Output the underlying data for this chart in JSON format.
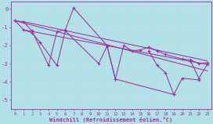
{
  "xlabel": "Windchill (Refroidissement éolien,°C)",
  "xlim": [
    -0.5,
    23.5
  ],
  "ylim": [
    -5.5,
    0.4
  ],
  "yticks": [
    0,
    -1,
    -2,
    -3,
    -4,
    -5
  ],
  "xticks": [
    0,
    1,
    2,
    3,
    4,
    5,
    6,
    7,
    8,
    9,
    10,
    11,
    12,
    13,
    14,
    15,
    16,
    17,
    18,
    19,
    20,
    21,
    22,
    23
  ],
  "background_color": "#b2e0e8",
  "line_color": "#993399",
  "grid_color": "#c8dde0",
  "series": [
    [
      -0.65,
      -0.7,
      -1.2,
      null,
      -3.1,
      -1.25,
      -1.15,
      0.05,
      null,
      null,
      null,
      -2.0,
      -3.85,
      null,
      null,
      null,
      null,
      null,
      null,
      -4.7,
      null,
      null,
      null,
      null
    ],
    [
      -0.65,
      -1.15,
      -1.3,
      -1.85,
      null,
      -3.1,
      -1.2,
      null,
      null,
      null,
      -3.0,
      -2.05,
      -3.85,
      -2.0,
      -2.3,
      -2.25,
      -2.1,
      -2.3,
      -2.5,
      null,
      -2.75,
      -2.8,
      -3.0,
      -2.95
    ],
    [
      null,
      null,
      null,
      null,
      null,
      null,
      null,
      null,
      null,
      null,
      null,
      null,
      null,
      null,
      null,
      null,
      -2.3,
      -3.1,
      -3.5,
      -4.7,
      -3.8,
      null,
      -3.9,
      null
    ],
    [
      null,
      null,
      null,
      null,
      null,
      null,
      null,
      null,
      null,
      null,
      null,
      null,
      null,
      null,
      null,
      null,
      null,
      null,
      null,
      null,
      null,
      -2.85,
      -3.8,
      -3.05
    ]
  ],
  "trend_lines": [
    [
      [
        1,
        23
      ],
      [
        -0.7,
        -2.85
      ]
    ],
    [
      [
        1,
        23
      ],
      [
        -1.15,
        -3.05
      ]
    ],
    [
      [
        0,
        23
      ],
      [
        -0.65,
        -3.4
      ]
    ]
  ]
}
